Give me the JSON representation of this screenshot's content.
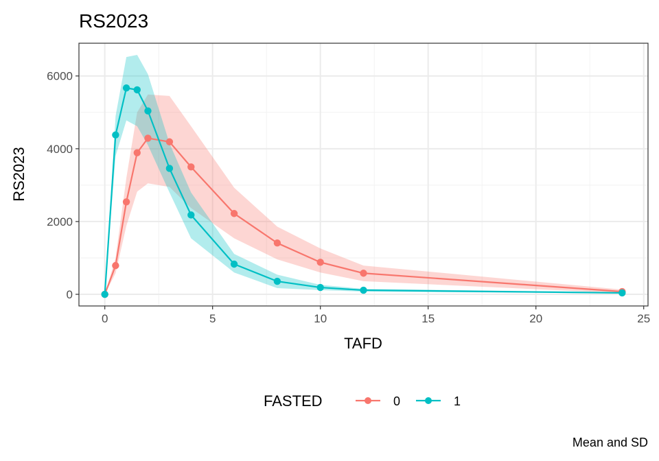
{
  "chart_data": {
    "type": "line",
    "title": "RS2023",
    "xlabel": "TAFD",
    "ylabel": "RS2023",
    "caption": "Mean and SD",
    "xlim": [
      -1.2,
      25.2
    ],
    "ylim": [
      -320,
      6900
    ],
    "xticks": [
      0,
      5,
      10,
      15,
      20,
      25
    ],
    "yticks": [
      0,
      2000,
      4000,
      6000
    ],
    "x_minor": [
      2.5,
      7.5,
      12.5,
      17.5,
      22.5
    ],
    "y_minor": [
      1000,
      3000,
      5000
    ],
    "grid": true,
    "legend": {
      "title": "FASTED",
      "position": "bottom"
    },
    "x": [
      0,
      0.5,
      1,
      1.5,
      2,
      3,
      4,
      6,
      8,
      10,
      12,
      24
    ],
    "series": [
      {
        "name": "0",
        "color": "#F8766D",
        "values": [
          0,
          790,
          2540,
          3890,
          4290,
          4190,
          3500,
          2220,
          1410,
          880,
          580,
          75
        ],
        "upper": [
          0,
          1000,
          3200,
          5000,
          5490,
          5450,
          4620,
          2930,
          1860,
          1260,
          790,
          130
        ],
        "lower": [
          0,
          580,
          1880,
          2820,
          3050,
          2950,
          2370,
          1540,
          960,
          600,
          360,
          30
        ]
      },
      {
        "name": "1",
        "color": "#00BFC4",
        "values": [
          0,
          4380,
          5670,
          5620,
          5040,
          3460,
          2180,
          830,
          357,
          188,
          113,
          40
        ],
        "upper": [
          0,
          4900,
          6520,
          6580,
          6050,
          4150,
          2800,
          1110,
          540,
          260,
          150,
          55
        ],
        "lower": [
          0,
          3800,
          4780,
          4620,
          4100,
          2800,
          1540,
          600,
          170,
          115,
          75,
          25
        ]
      }
    ]
  }
}
